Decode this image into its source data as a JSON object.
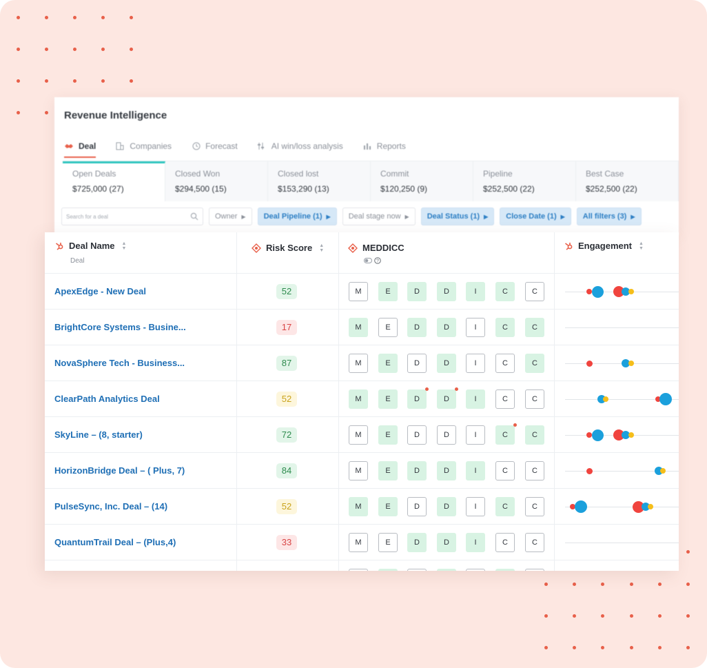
{
  "app": {
    "title": "Revenue Intelligence"
  },
  "tabs": [
    {
      "label": "Deal",
      "icon": "handshake-icon",
      "active": true
    },
    {
      "label": "Companies",
      "icon": "building-icon",
      "active": false
    },
    {
      "label": "Forecast",
      "icon": "history-icon",
      "active": false
    },
    {
      "label": "AI win/loss analysis",
      "icon": "sliders-icon",
      "active": false
    },
    {
      "label": "Reports",
      "icon": "bar-chart-icon",
      "active": false
    }
  ],
  "stats": [
    {
      "label": "Open Deals",
      "value": "$725,000 (27)"
    },
    {
      "label": "Closed Won",
      "value": "$294,500 (15)"
    },
    {
      "label": "Closed lost",
      "value": "$153,290 (13)"
    },
    {
      "label": "Commit",
      "value": "$120,250 (9)"
    },
    {
      "label": "Pipeline",
      "value": "$252,500 (22)"
    },
    {
      "label": "Best Case",
      "value": "$252,500 (22)"
    }
  ],
  "search": {
    "placeholder": "Search for a deal"
  },
  "filters": [
    {
      "label": "Owner",
      "active": false
    },
    {
      "label": "Deal Pipeline (1)",
      "active": true
    },
    {
      "label": "Deal stage now",
      "active": false
    },
    {
      "label": "Deal Status (1)",
      "active": true
    },
    {
      "label": "Close Date (1)",
      "active": true
    },
    {
      "label": "All filters (3)",
      "active": true
    }
  ],
  "table": {
    "columns": {
      "deal_name": "Deal Name",
      "deal_sub": "Deal",
      "risk": "Risk Score",
      "meddicc": "MEDDICC",
      "engagement": "Engagement"
    },
    "colors": {
      "good": "#2e8b4e",
      "bad": "#d84545",
      "mid": "#c9a31c",
      "link": "#1f6fb5"
    },
    "rows": [
      {
        "name": "ApexEdge - New Deal",
        "risk": "52",
        "level": "good",
        "meddicc": [
          0,
          1,
          1,
          1,
          1,
          1,
          0
        ],
        "flags": []
      },
      {
        "name": "BrightCore Systems - Busine...",
        "risk": "17",
        "level": "bad",
        "meddicc": [
          1,
          0,
          1,
          1,
          0,
          1,
          1
        ],
        "flags": []
      },
      {
        "name": "NovaSphere Tech - Business...",
        "risk": "87",
        "level": "good",
        "meddicc": [
          0,
          1,
          0,
          1,
          0,
          0,
          1
        ],
        "flags": []
      },
      {
        "name": "ClearPath Analytics Deal",
        "risk": "52",
        "level": "mid",
        "meddicc": [
          1,
          1,
          1,
          1,
          1,
          0,
          0
        ],
        "flags": [
          2,
          3
        ]
      },
      {
        "name": "SkyLine – (8, starter)",
        "risk": "72",
        "level": "good",
        "meddicc": [
          0,
          1,
          0,
          0,
          0,
          1,
          1
        ],
        "flags": [
          5
        ]
      },
      {
        "name": "HorizonBridge Deal – ( Plus, 7)",
        "risk": "84",
        "level": "good",
        "meddicc": [
          0,
          1,
          1,
          1,
          1,
          0,
          0
        ],
        "flags": []
      },
      {
        "name": "PulseSync, Inc. Deal – (14)",
        "risk": "52",
        "level": "mid",
        "meddicc": [
          1,
          1,
          0,
          1,
          0,
          1,
          0
        ],
        "flags": []
      },
      {
        "name": "QuantumTrail Deal – (Plus,4)",
        "risk": "33",
        "level": "bad",
        "meddicc": [
          0,
          0,
          1,
          1,
          1,
          0,
          0
        ],
        "flags": []
      }
    ],
    "meddicc_letters": [
      "M",
      "E",
      "D",
      "D",
      "I",
      "C",
      "C"
    ]
  }
}
